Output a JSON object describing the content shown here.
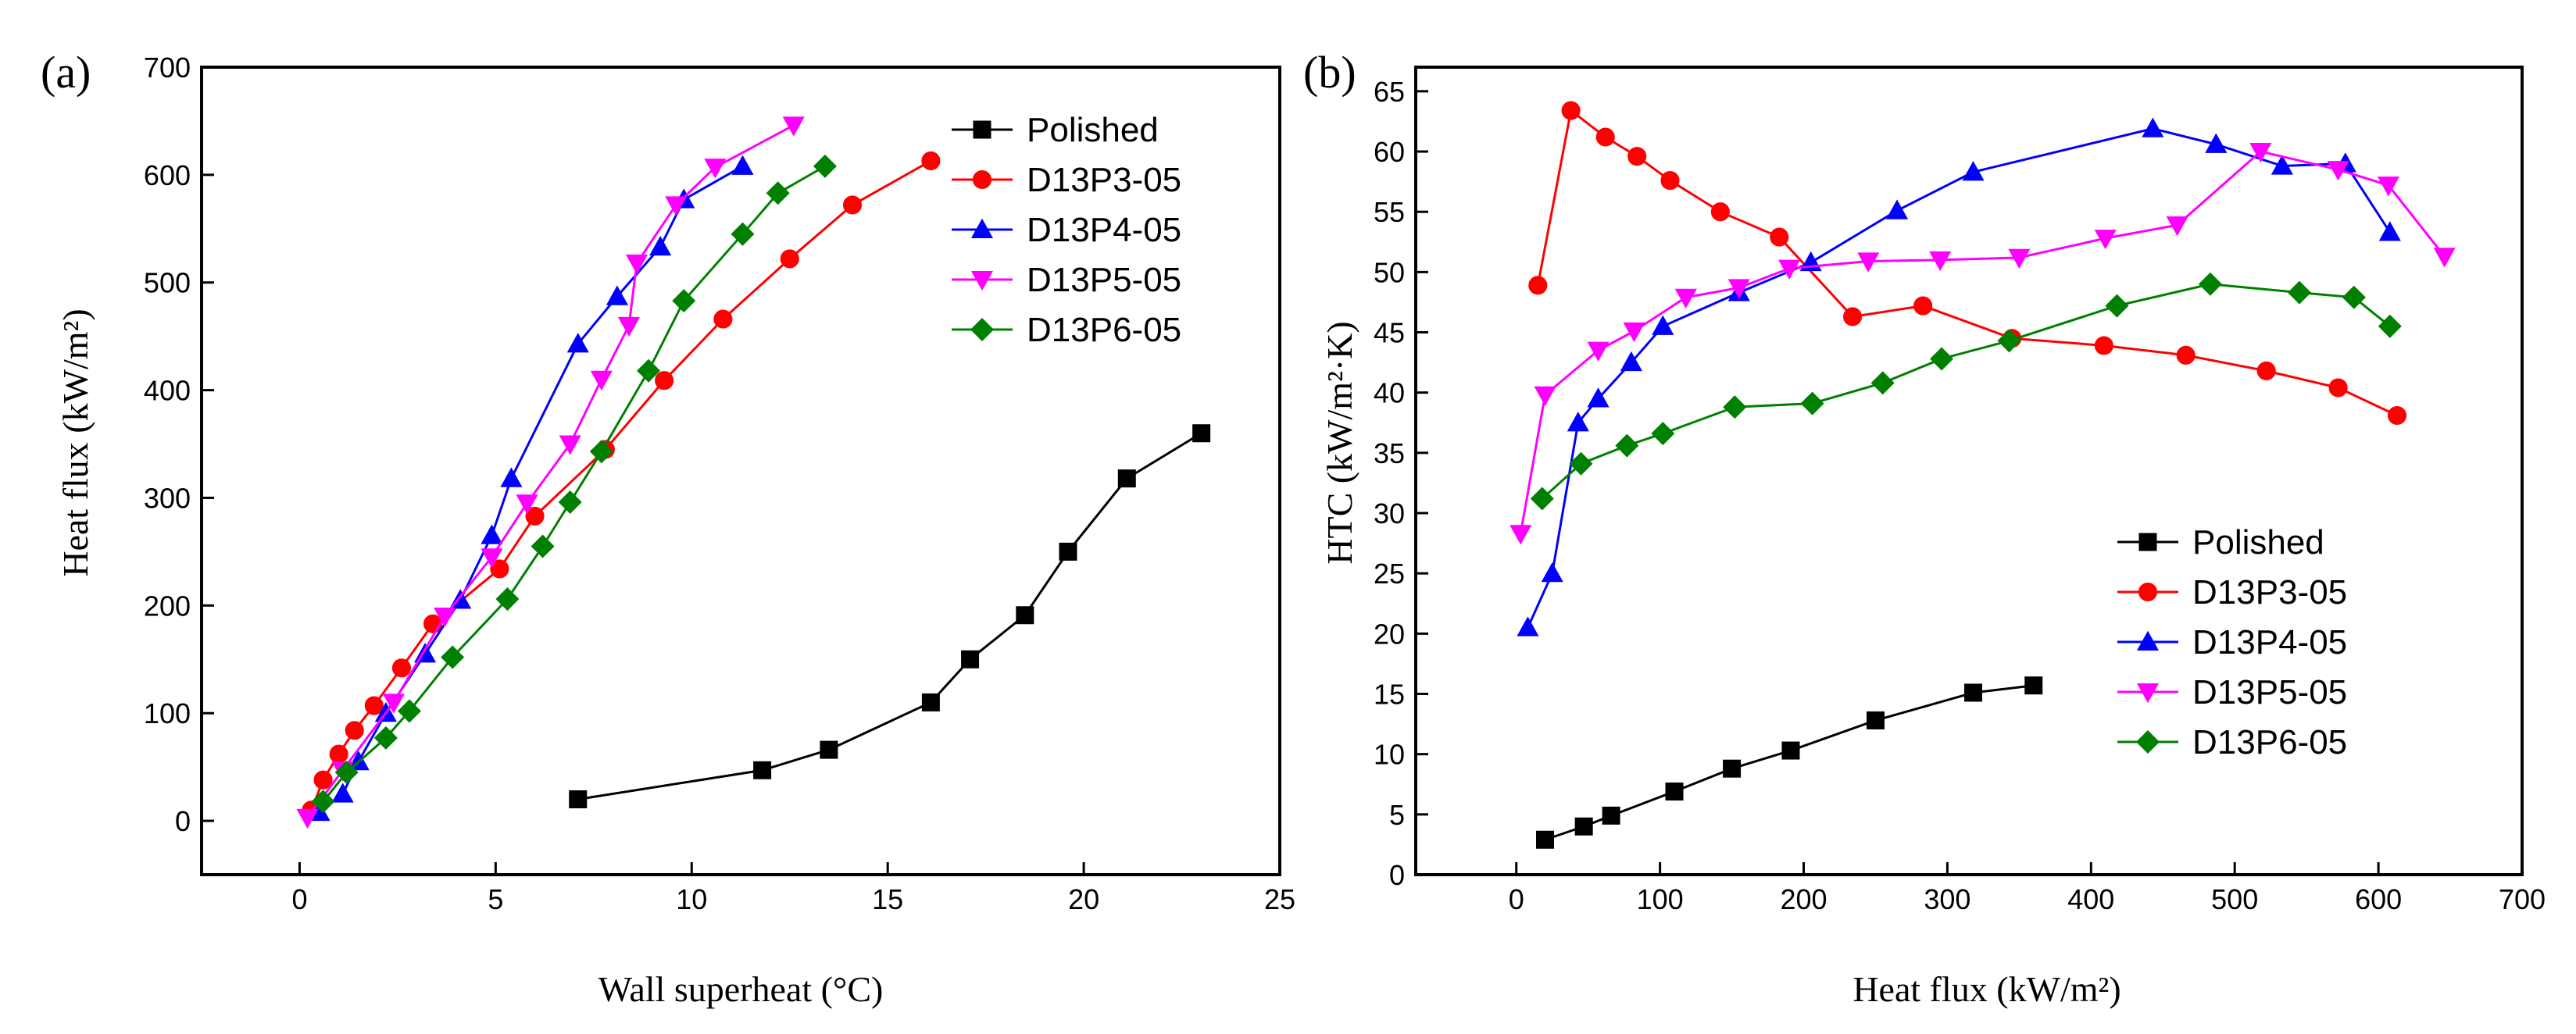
{
  "chart_data": [
    {
      "type": "line",
      "panel_label": "(a)",
      "xlabel": "Wall superheat (°C)",
      "ylabel": "Heat flux (kW/m²)",
      "xlim": [
        -2.5,
        25
      ],
      "ylim": [
        -50,
        700
      ],
      "xticks": [
        0,
        5,
        10,
        15,
        20,
        25
      ],
      "yticks": [
        0,
        100,
        200,
        300,
        400,
        500,
        600,
        700
      ],
      "grid": false,
      "legend_position": "top-right",
      "series": [
        {
          "name": "Polished",
          "color": "#000000",
          "marker": "square",
          "x": [
            7.1,
            11.8,
            13.5,
            16.1,
            17.1,
            18.5,
            19.6,
            21.1,
            23.0
          ],
          "y": [
            20,
            47,
            66,
            110,
            150,
            191,
            250,
            318,
            360
          ]
        },
        {
          "name": "D13P3-05",
          "color": "#ff0000",
          "marker": "circle",
          "x": [
            0.3,
            0.6,
            1.0,
            1.4,
            1.9,
            2.6,
            3.4,
            5.1,
            6.0,
            7.8,
            9.3,
            10.8,
            12.5,
            14.1,
            16.1
          ],
          "y": [
            10,
            38,
            62,
            84,
            107,
            142,
            183,
            234,
            283,
            345,
            409,
            466,
            522,
            572,
            613
          ]
        },
        {
          "name": "D13P4-05",
          "color": "#0000ff",
          "marker": "triangle-up",
          "x": [
            0.5,
            1.1,
            1.5,
            2.2,
            3.2,
            4.1,
            4.9,
            5.4,
            7.1,
            8.1,
            9.2,
            9.8,
            11.3
          ],
          "y": [
            8,
            25,
            55,
            100,
            155,
            205,
            265,
            318,
            443,
            487,
            533,
            577,
            608
          ]
        },
        {
          "name": "D13P5-05",
          "color": "#ff00ff",
          "marker": "triangle-down",
          "x": [
            0.2,
            1.1,
            2.4,
            3.7,
            4.9,
            5.8,
            6.9,
            7.7,
            8.4,
            8.6,
            9.6,
            10.6,
            12.6
          ],
          "y": [
            3,
            47,
            110,
            190,
            245,
            295,
            350,
            410,
            460,
            518,
            572,
            607,
            646
          ]
        },
        {
          "name": "D13P6-05",
          "color": "#008000",
          "marker": "diamond",
          "x": [
            0.6,
            1.2,
            2.2,
            2.8,
            3.9,
            5.3,
            6.2,
            6.9,
            7.7,
            8.9,
            9.8,
            11.3,
            12.2,
            13.4
          ],
          "y": [
            18,
            45,
            77,
            102,
            152,
            206,
            255,
            296,
            343,
            418,
            483,
            545,
            583,
            608
          ]
        }
      ]
    },
    {
      "type": "line",
      "panel_label": "(b)",
      "xlabel": "Heat flux (kW/m²)",
      "ylabel": "HTC (kW/m²·K)",
      "xlim": [
        -70,
        700
      ],
      "ylim": [
        0,
        67
      ],
      "xticks": [
        0,
        100,
        200,
        300,
        400,
        500,
        600,
        700
      ],
      "yticks": [
        0,
        5,
        10,
        15,
        20,
        25,
        30,
        35,
        40,
        45,
        50,
        55,
        60,
        65
      ],
      "grid": false,
      "legend_position": "bottom-right",
      "series": [
        {
          "name": "Polished",
          "color": "#000000",
          "marker": "square",
          "x": [
            20,
            47,
            66,
            110,
            150,
            191,
            250,
            318,
            360
          ],
          "y": [
            2.9,
            4.0,
            4.9,
            6.9,
            8.8,
            10.3,
            12.8,
            15.1,
            15.7
          ]
        },
        {
          "name": "D13P3-05",
          "color": "#ff0000",
          "marker": "circle",
          "x": [
            15,
            38,
            62,
            84,
            107,
            142,
            183,
            234,
            283,
            345,
            409,
            466,
            522,
            572,
            613
          ],
          "y": [
            48.9,
            63.4,
            61.2,
            59.6,
            57.6,
            55.0,
            52.9,
            46.3,
            47.2,
            44.5,
            43.9,
            43.1,
            41.8,
            40.4,
            38.1
          ]
        },
        {
          "name": "D13P4-05",
          "color": "#0000ff",
          "marker": "triangle-up",
          "x": [
            8,
            25,
            43,
            57,
            80,
            102,
            155,
            205,
            265,
            318,
            443,
            487,
            533,
            577,
            608
          ],
          "y": [
            20.5,
            25.0,
            37.5,
            39.5,
            42.5,
            45.5,
            48.3,
            50.8,
            55.1,
            58.3,
            61.9,
            60.6,
            58.8,
            59.0,
            53.3
          ]
        },
        {
          "name": "D13P5-05",
          "color": "#ff00ff",
          "marker": "triangle-down",
          "x": [
            3,
            20,
            57,
            82,
            118,
            155,
            190,
            245,
            295,
            350,
            410,
            460,
            518,
            572,
            607,
            646
          ],
          "y": [
            28.3,
            39.8,
            43.5,
            45.1,
            47.9,
            48.7,
            50.3,
            50.9,
            51.0,
            51.2,
            52.8,
            53.9,
            60.0,
            58.5,
            57.2,
            51.3
          ]
        },
        {
          "name": "D13P6-05",
          "color": "#008000",
          "marker": "diamond",
          "x": [
            18,
            45,
            77,
            102,
            152,
            206,
            255,
            296,
            343,
            418,
            483,
            545,
            583,
            608
          ],
          "y": [
            31.2,
            34.1,
            35.6,
            36.6,
            38.8,
            39.1,
            40.8,
            42.8,
            44.3,
            47.2,
            49.0,
            48.3,
            47.9,
            45.5
          ]
        }
      ]
    }
  ]
}
